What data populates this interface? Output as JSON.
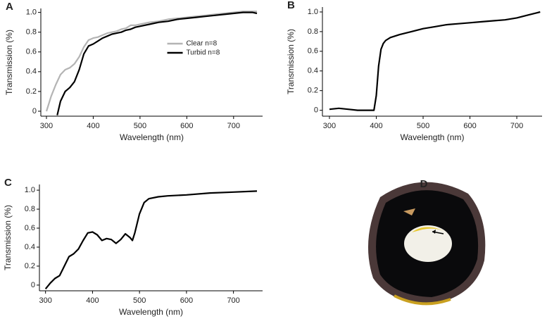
{
  "chart_data": [
    {
      "type": "line",
      "panel": "A",
      "xlabel": "Wavelength (nm)",
      "ylabel": "Transmission (%)",
      "xlim": [
        288,
        762
      ],
      "ylim": [
        -0.05,
        1.04
      ],
      "xticks": [
        300,
        400,
        500,
        600,
        700
      ],
      "yticks": [
        0,
        0.2,
        0.4,
        0.6,
        0.8,
        {
          "value": 1,
          "label": "1.0"
        }
      ],
      "legend": "center right",
      "series": [
        {
          "name": "Clear n=8",
          "color": "#b4b4b4",
          "x": [
            300,
            310,
            320,
            330,
            340,
            350,
            360,
            370,
            380,
            390,
            400,
            410,
            420,
            430,
            440,
            450,
            460,
            470,
            480,
            490,
            500,
            520,
            540,
            560,
            580,
            600,
            620,
            640,
            660,
            680,
            700,
            720,
            740,
            750
          ],
          "values": [
            0.0,
            0.15,
            0.27,
            0.37,
            0.42,
            0.44,
            0.48,
            0.55,
            0.65,
            0.72,
            0.74,
            0.75,
            0.77,
            0.79,
            0.8,
            0.81,
            0.83,
            0.84,
            0.87,
            0.87,
            0.88,
            0.9,
            0.91,
            0.93,
            0.94,
            0.95,
            0.96,
            0.97,
            0.98,
            0.99,
            1.0,
            1.01,
            1.01,
            1.01
          ]
        },
        {
          "name": "Turbid n=8",
          "color": "#000000",
          "x": [
            323,
            330,
            340,
            350,
            360,
            370,
            380,
            390,
            400,
            410,
            420,
            430,
            440,
            450,
            460,
            470,
            480,
            490,
            500,
            520,
            540,
            560,
            580,
            600,
            620,
            640,
            660,
            680,
            700,
            720,
            740,
            750
          ],
          "values": [
            -0.04,
            0.1,
            0.2,
            0.24,
            0.3,
            0.42,
            0.58,
            0.66,
            0.68,
            0.71,
            0.74,
            0.76,
            0.78,
            0.79,
            0.8,
            0.82,
            0.83,
            0.85,
            0.86,
            0.88,
            0.9,
            0.91,
            0.93,
            0.94,
            0.95,
            0.96,
            0.97,
            0.98,
            0.99,
            1.0,
            1.0,
            0.99
          ]
        }
      ]
    },
    {
      "type": "line",
      "panel": "B",
      "xlabel": "Wavelength (nm)",
      "ylabel": "Transmission (%)",
      "xlim": [
        285,
        754
      ],
      "ylim": [
        -0.06,
        1.05
      ],
      "xticks": [
        300,
        400,
        500,
        600,
        700
      ],
      "yticks": [
        0,
        0.2,
        0.4,
        0.6,
        0.8,
        {
          "value": 1,
          "label": "1.0"
        }
      ],
      "series": [
        {
          "color": "#000000",
          "x": [
            300,
            320,
            340,
            360,
            380,
            395,
            400,
            405,
            410,
            415,
            420,
            430,
            450,
            475,
            500,
            525,
            550,
            575,
            600,
            625,
            650,
            675,
            700,
            725,
            750
          ],
          "values": [
            0.01,
            0.02,
            0.01,
            0.0,
            0.0,
            0.0,
            0.15,
            0.45,
            0.62,
            0.68,
            0.71,
            0.74,
            0.77,
            0.8,
            0.83,
            0.85,
            0.87,
            0.88,
            0.89,
            0.9,
            0.91,
            0.92,
            0.94,
            0.97,
            1.0
          ]
        }
      ]
    },
    {
      "type": "line",
      "panel": "C",
      "xlabel": "Wavelength (nm)",
      "ylabel": "Transmission (%)",
      "xlim": [
        287,
        762
      ],
      "ylim": [
        -0.06,
        1.06
      ],
      "xticks": [
        300,
        400,
        500,
        600,
        700
      ],
      "yticks": [
        0,
        0.2,
        0.4,
        0.6,
        0.8,
        {
          "value": 1,
          "label": "1.0"
        }
      ],
      "series": [
        {
          "color": "#000000",
          "x": [
            300,
            310,
            320,
            330,
            340,
            350,
            360,
            370,
            380,
            390,
            400,
            410,
            420,
            430,
            440,
            450,
            460,
            470,
            480,
            485,
            490,
            500,
            510,
            520,
            540,
            560,
            600,
            650,
            700,
            750
          ],
          "values": [
            -0.04,
            0.02,
            0.07,
            0.1,
            0.2,
            0.3,
            0.33,
            0.38,
            0.47,
            0.55,
            0.56,
            0.53,
            0.47,
            0.49,
            0.48,
            0.44,
            0.48,
            0.54,
            0.5,
            0.47,
            0.55,
            0.75,
            0.87,
            0.91,
            0.93,
            0.94,
            0.95,
            0.97,
            0.98,
            0.99
          ]
        }
      ]
    }
  ],
  "photo": {
    "panel": "D"
  }
}
